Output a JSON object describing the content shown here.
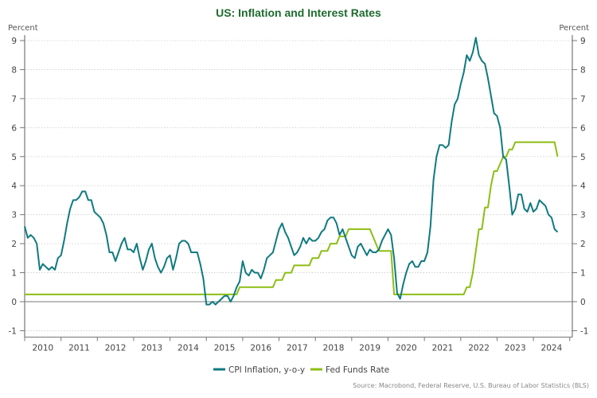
{
  "chart_data": {
    "type": "line",
    "title": "US: Inflation and Interest Rates",
    "ylabel_left": "Percent",
    "ylabel_right": "Percent",
    "xlabel": "",
    "ylim": [
      -1,
      9
    ],
    "yticks": [
      -1,
      0,
      1,
      2,
      3,
      4,
      5,
      6,
      7,
      8,
      9
    ],
    "xticks": [
      "2010",
      "2011",
      "2012",
      "2013",
      "2014",
      "2015",
      "2016",
      "2017",
      "2018",
      "2019",
      "2020",
      "2021",
      "2022",
      "2023",
      "2024"
    ],
    "x_start": "2010-01",
    "x_frequency": "monthly",
    "grid": true,
    "legend_position": "bottom-center",
    "source": "Source: Macrobond, Federal Reserve, U.S. Bureau of Labor Statistics (BLS)",
    "series": [
      {
        "name": "CPI Inflation, y-o-y",
        "color": "#0f7a80",
        "values": [
          2.6,
          2.2,
          2.3,
          2.2,
          2.0,
          1.1,
          1.3,
          1.2,
          1.1,
          1.2,
          1.1,
          1.5,
          1.6,
          2.1,
          2.7,
          3.2,
          3.5,
          3.5,
          3.6,
          3.8,
          3.8,
          3.5,
          3.5,
          3.1,
          3.0,
          2.9,
          2.7,
          2.3,
          1.7,
          1.7,
          1.4,
          1.7,
          2.0,
          2.2,
          1.8,
          1.8,
          1.7,
          2.0,
          1.5,
          1.1,
          1.4,
          1.8,
          2.0,
          1.5,
          1.2,
          1.0,
          1.2,
          1.5,
          1.6,
          1.1,
          1.5,
          2.0,
          2.1,
          2.1,
          2.0,
          1.7,
          1.7,
          1.7,
          1.3,
          0.8,
          -0.1,
          -0.1,
          0.0,
          -0.1,
          0.0,
          0.1,
          0.2,
          0.2,
          0.0,
          0.2,
          0.5,
          0.7,
          1.4,
          1.0,
          0.9,
          1.1,
          1.0,
          1.0,
          0.8,
          1.1,
          1.5,
          1.6,
          1.7,
          2.1,
          2.5,
          2.7,
          2.4,
          2.2,
          1.9,
          1.6,
          1.7,
          1.9,
          2.2,
          2.0,
          2.2,
          2.1,
          2.1,
          2.2,
          2.4,
          2.5,
          2.8,
          2.9,
          2.9,
          2.7,
          2.3,
          2.5,
          2.2,
          1.9,
          1.6,
          1.5,
          1.9,
          2.0,
          1.8,
          1.6,
          1.8,
          1.7,
          1.7,
          1.8,
          2.1,
          2.3,
          2.5,
          2.3,
          1.5,
          0.3,
          0.1,
          0.6,
          1.0,
          1.3,
          1.4,
          1.2,
          1.2,
          1.4,
          1.4,
          1.7,
          2.6,
          4.2,
          5.0,
          5.4,
          5.4,
          5.3,
          5.4,
          6.2,
          6.8,
          7.0,
          7.5,
          7.9,
          8.5,
          8.3,
          8.6,
          9.1,
          8.5,
          8.3,
          8.2,
          7.7,
          7.1,
          6.5,
          6.4,
          6.0,
          5.0,
          4.9,
          4.0,
          3.0,
          3.2,
          3.7,
          3.7,
          3.2,
          3.1,
          3.4,
          3.1,
          3.2,
          3.5,
          3.4,
          3.3,
          3.0,
          2.9,
          2.5,
          2.4
        ]
      },
      {
        "name": "Fed Funds Rate",
        "color": "#8cbe14",
        "values": [
          0.25,
          0.25,
          0.25,
          0.25,
          0.25,
          0.25,
          0.25,
          0.25,
          0.25,
          0.25,
          0.25,
          0.25,
          0.25,
          0.25,
          0.25,
          0.25,
          0.25,
          0.25,
          0.25,
          0.25,
          0.25,
          0.25,
          0.25,
          0.25,
          0.25,
          0.25,
          0.25,
          0.25,
          0.25,
          0.25,
          0.25,
          0.25,
          0.25,
          0.25,
          0.25,
          0.25,
          0.25,
          0.25,
          0.25,
          0.25,
          0.25,
          0.25,
          0.25,
          0.25,
          0.25,
          0.25,
          0.25,
          0.25,
          0.25,
          0.25,
          0.25,
          0.25,
          0.25,
          0.25,
          0.25,
          0.25,
          0.25,
          0.25,
          0.25,
          0.25,
          0.25,
          0.25,
          0.25,
          0.25,
          0.25,
          0.25,
          0.25,
          0.25,
          0.25,
          0.25,
          0.25,
          0.5,
          0.5,
          0.5,
          0.5,
          0.5,
          0.5,
          0.5,
          0.5,
          0.5,
          0.5,
          0.5,
          0.5,
          0.75,
          0.75,
          0.75,
          1.0,
          1.0,
          1.0,
          1.25,
          1.25,
          1.25,
          1.25,
          1.25,
          1.25,
          1.5,
          1.5,
          1.5,
          1.75,
          1.75,
          1.75,
          2.0,
          2.0,
          2.0,
          2.25,
          2.25,
          2.25,
          2.5,
          2.5,
          2.5,
          2.5,
          2.5,
          2.5,
          2.5,
          2.5,
          2.25,
          2.0,
          1.75,
          1.75,
          1.75,
          1.75,
          1.75,
          0.25,
          0.25,
          0.25,
          0.25,
          0.25,
          0.25,
          0.25,
          0.25,
          0.25,
          0.25,
          0.25,
          0.25,
          0.25,
          0.25,
          0.25,
          0.25,
          0.25,
          0.25,
          0.25,
          0.25,
          0.25,
          0.25,
          0.25,
          0.25,
          0.5,
          0.5,
          1.0,
          1.75,
          2.5,
          2.5,
          3.25,
          3.25,
          4.0,
          4.5,
          4.5,
          4.75,
          5.0,
          5.0,
          5.25,
          5.25,
          5.5,
          5.5,
          5.5,
          5.5,
          5.5,
          5.5,
          5.5,
          5.5,
          5.5,
          5.5,
          5.5,
          5.5,
          5.5,
          5.5,
          5.0
        ]
      }
    ]
  }
}
